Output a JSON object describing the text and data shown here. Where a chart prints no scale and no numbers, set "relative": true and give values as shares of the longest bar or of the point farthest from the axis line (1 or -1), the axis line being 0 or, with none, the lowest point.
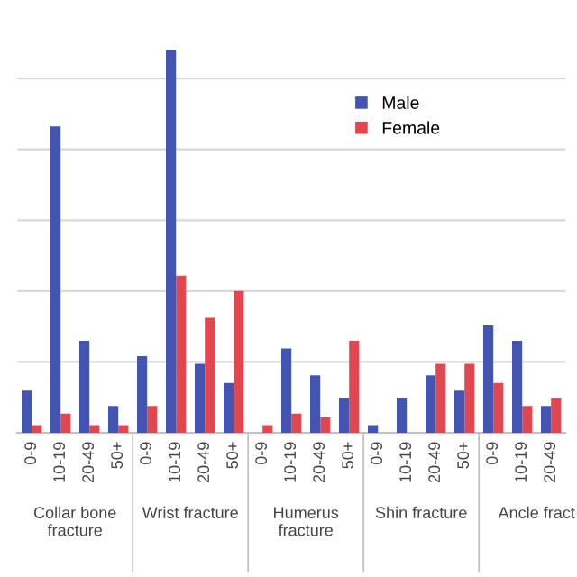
{
  "chart_data": {
    "type": "bar",
    "relative": true,
    "categories": [
      "0-9",
      "10-19",
      "20-49",
      "50+",
      "0-9",
      "10-19",
      "20-49",
      "50+",
      "0-9",
      "10-19",
      "20-49",
      "50+",
      "0-9",
      "10-19",
      "20-49",
      "50+",
      "0-9",
      "10-19",
      "20-49"
    ],
    "series": [
      {
        "name": "Male",
        "color": "#4355b0",
        "values": [
          0.11,
          0.8,
          0.24,
          0.07,
          0.2,
          1,
          0.18,
          0.13,
          0,
          0.22,
          0.15,
          0.09,
          0.02,
          0.09,
          0.15,
          0.11,
          0.28,
          0.24,
          0.07
        ]
      },
      {
        "name": "Female",
        "color": "#e0474f",
        "values": [
          0.02,
          0.05,
          0.02,
          0.02,
          0.07,
          0.41,
          0.3,
          0.37,
          0.02,
          0.05,
          0.04,
          0.24,
          0,
          0,
          0.18,
          0.18,
          0.13,
          0.07,
          0.09
        ]
      }
    ],
    "annotations": [
      "Collar bone\nfracture",
      "Wrist fracture",
      "Humerus\nfracture",
      "Shin fracture",
      "Ancle fract"
    ],
    "grid": "y",
    "legend": "right"
  }
}
